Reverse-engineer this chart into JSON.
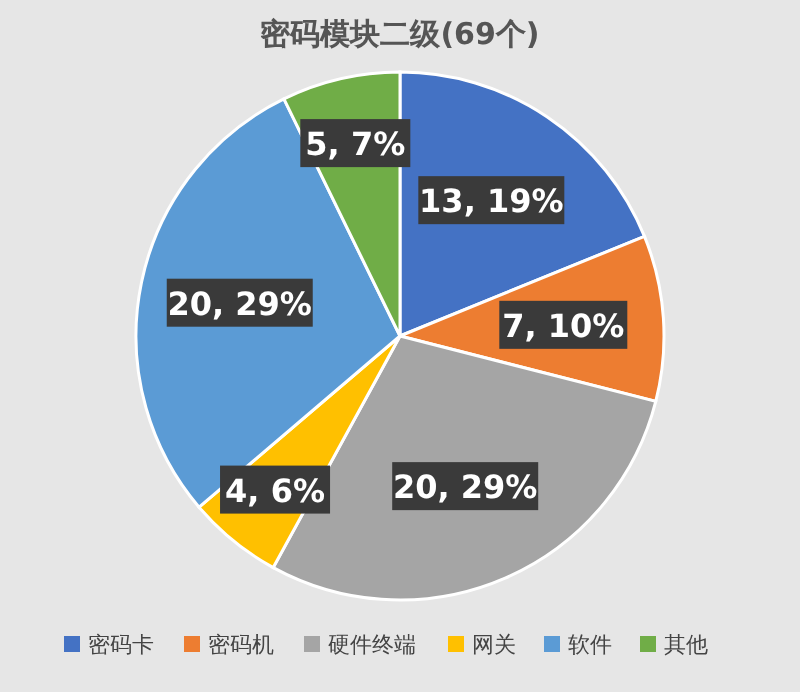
{
  "chart_data": {
    "type": "pie",
    "title": "密码模块二级(69个)",
    "categories": [
      "密码卡",
      "密码机",
      "硬件终端",
      "网关",
      "软件",
      "其他"
    ],
    "values": [
      13,
      7,
      20,
      4,
      20,
      5
    ],
    "value_labels": [
      "13, 19%",
      "7, 10%",
      "20, 29%",
      "4, 6%",
      "20, 29%",
      "5, 7%"
    ],
    "colors": [
      "#4472c4",
      "#ed7d31",
      "#a5a5a5",
      "#ffc000",
      "#5b9bd5",
      "#70ad47"
    ],
    "legend": "bottom"
  }
}
